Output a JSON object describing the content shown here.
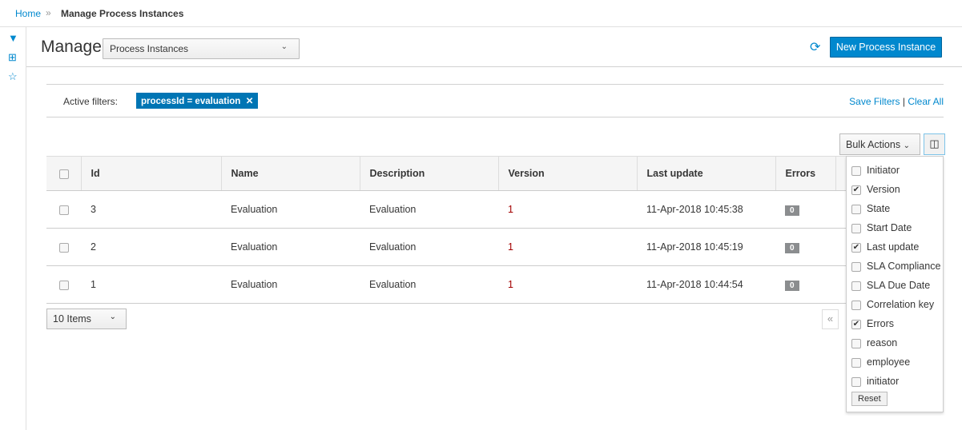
{
  "breadcrumb": {
    "home": "Home",
    "separator": "»",
    "current": "Manage Process Instances"
  },
  "sidebar": [
    {
      "icon": "filter-icon",
      "glyph": "▼"
    },
    {
      "icon": "plus-square-icon",
      "glyph": "⊞"
    },
    {
      "icon": "star-icon",
      "glyph": "☆"
    }
  ],
  "header": {
    "title": "Manage",
    "selector": "Process Instances",
    "new_button": "New Process Instance"
  },
  "filters": {
    "label": "Active filters:",
    "chips": [
      "processId = evaluation"
    ],
    "save": "Save Filters",
    "divider": "|",
    "clear": "Clear All"
  },
  "toolbar": {
    "bulk": "Bulk Actions"
  },
  "table": {
    "columns": [
      "Id",
      "Name",
      "Description",
      "Version",
      "Last update",
      "Errors"
    ],
    "rows": [
      [
        "3",
        "Evaluation",
        "Evaluation",
        "1",
        "11-Apr-2018 10:45:38",
        "0"
      ],
      [
        "2",
        "Evaluation",
        "Evaluation",
        "1",
        "11-Apr-2018 10:45:19",
        "0"
      ],
      [
        "1",
        "Evaluation",
        "Evaluation",
        "1",
        "11-Apr-2018 10:44:54",
        "0"
      ]
    ]
  },
  "pagination": {
    "page_size": "10 Items",
    "first": "«"
  },
  "column_menu": {
    "items": [
      {
        "label": "Initiator",
        "checked": false
      },
      {
        "label": "Version",
        "checked": true
      },
      {
        "label": "State",
        "checked": false
      },
      {
        "label": "Start Date",
        "checked": false
      },
      {
        "label": "Last update",
        "checked": true
      },
      {
        "label": "SLA Compliance",
        "checked": false
      },
      {
        "label": "SLA Due Date",
        "checked": false
      },
      {
        "label": "Correlation key",
        "checked": false
      },
      {
        "label": "Errors",
        "checked": true
      },
      {
        "label": "reason",
        "checked": false
      },
      {
        "label": "employee",
        "checked": false
      },
      {
        "label": "initiator",
        "checked": false
      }
    ],
    "reset": "Reset"
  }
}
